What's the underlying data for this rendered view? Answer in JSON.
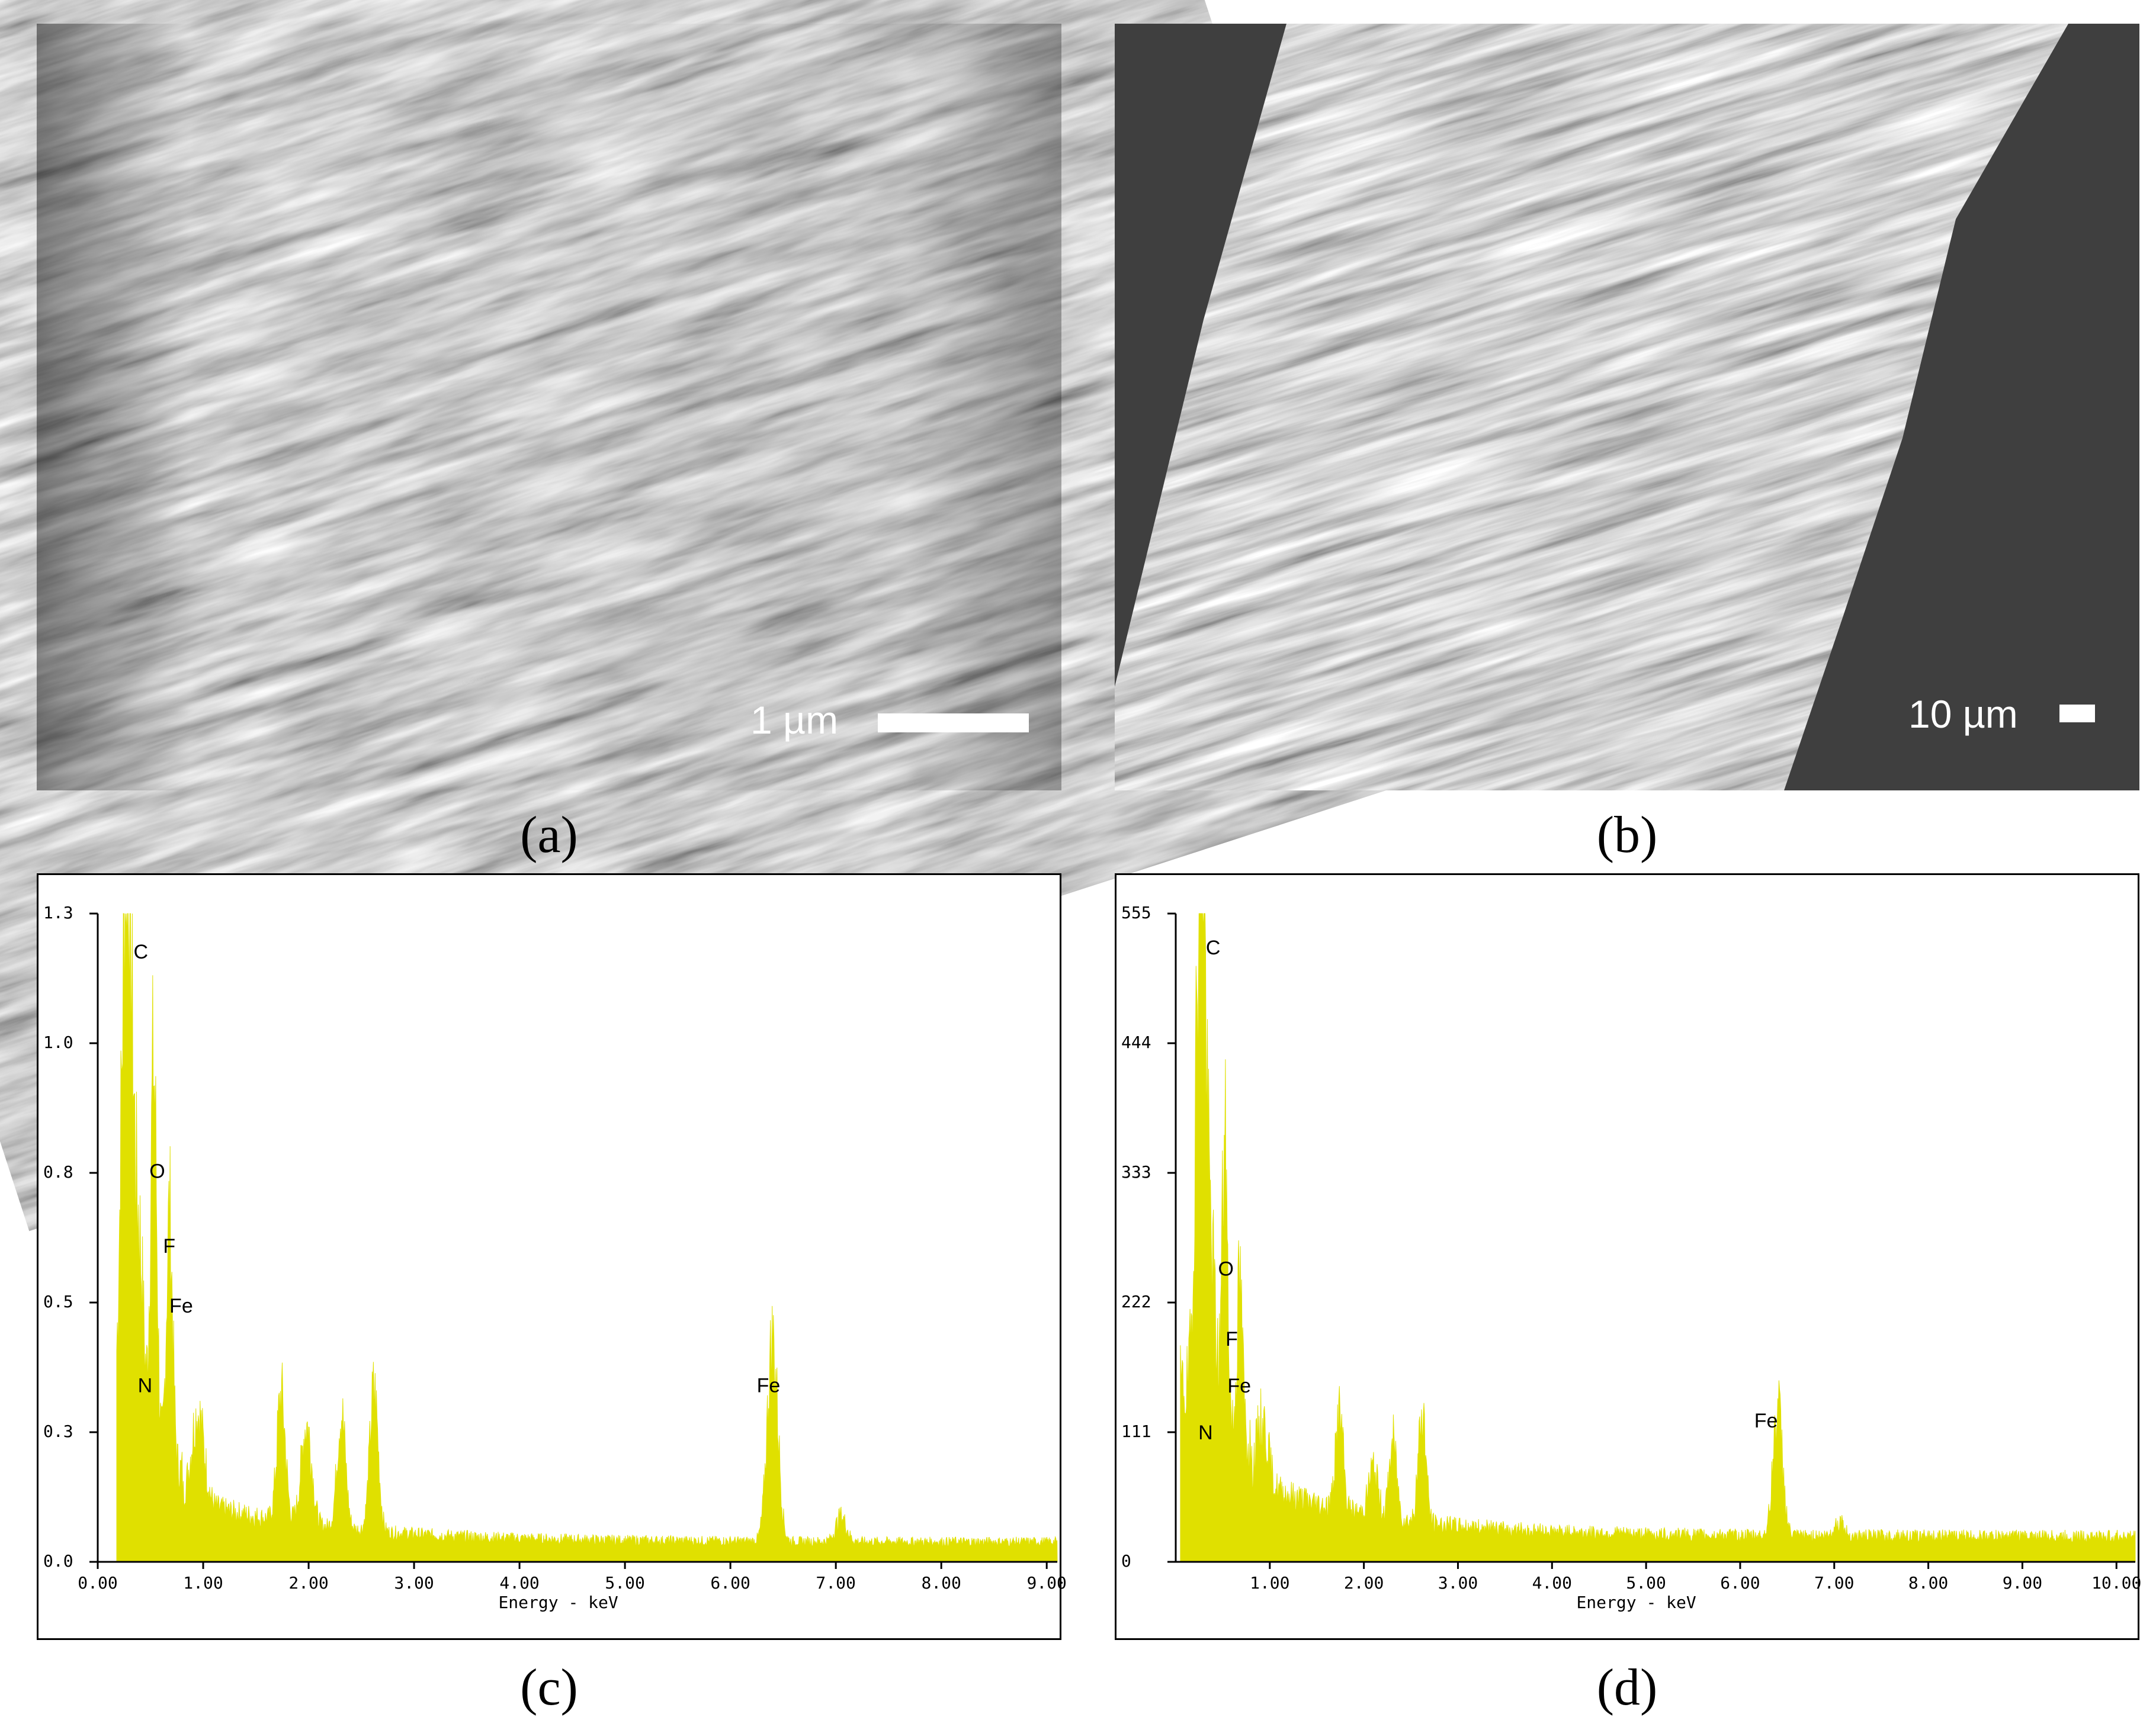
{
  "panels": {
    "a": {
      "caption": "(a)",
      "scale_bar_label": "1 µm"
    },
    "b": {
      "caption": "(b)",
      "scale_bar_label": "10 µm"
    },
    "c": {
      "caption": "(c)",
      "chart_data": {
        "type": "area",
        "xlabel": "Energy - keV",
        "x_ticks": [
          "0.00",
          "1.00",
          "2.00",
          "3.00",
          "4.00",
          "5.00",
          "6.00",
          "7.00",
          "8.00",
          "9.00"
        ],
        "y_ticks": [
          "0.0",
          "0.3",
          "0.5",
          "0.8",
          "1.0",
          "1.3"
        ],
        "xlim": [
          0,
          9.1
        ],
        "ylim": [
          0,
          1.3
        ],
        "color": "#e0e000",
        "baseline": 0.04,
        "peaks": [
          {
            "x": 0.28,
            "y": 1.27,
            "w": 0.05
          },
          {
            "x": 0.4,
            "y": 0.36,
            "w": 0.04
          },
          {
            "x": 0.53,
            "y": 0.78,
            "w": 0.03
          },
          {
            "x": 0.68,
            "y": 0.5,
            "w": 0.03
          },
          {
            "x": 0.95,
            "y": 0.18,
            "w": 0.06
          },
          {
            "x": 1.74,
            "y": 0.25,
            "w": 0.04
          },
          {
            "x": 1.98,
            "y": 0.2,
            "w": 0.05
          },
          {
            "x": 2.31,
            "y": 0.23,
            "w": 0.04
          },
          {
            "x": 2.62,
            "y": 0.28,
            "w": 0.04
          },
          {
            "x": 6.4,
            "y": 0.4,
            "w": 0.05
          },
          {
            "x": 7.05,
            "y": 0.05,
            "w": 0.05
          }
        ],
        "annotations": [
          {
            "text": "C",
            "x": 0.34,
            "y": 1.21
          },
          {
            "text": "O",
            "x": 0.49,
            "y": 0.77
          },
          {
            "text": "F",
            "x": 0.62,
            "y": 0.62
          },
          {
            "text": "Fe",
            "x": 0.68,
            "y": 0.5
          },
          {
            "text": "N",
            "x": 0.38,
            "y": 0.34
          },
          {
            "text": "Fe",
            "x": 6.25,
            "y": 0.34
          }
        ]
      }
    },
    "d": {
      "caption": "(d)",
      "chart_data": {
        "type": "area",
        "xlabel": "Energy - keV",
        "x_ticks": [
          "1.00",
          "2.00",
          "3.00",
          "4.00",
          "5.00",
          "6.00",
          "7.00",
          "8.00",
          "9.00",
          "10.00"
        ],
        "y_ticks": [
          "0",
          "111",
          "222",
          "333",
          "444",
          "555"
        ],
        "xlim": [
          0,
          10.2
        ],
        "ylim": [
          0,
          555
        ],
        "color": "#e0e000",
        "baseline": 22,
        "peaks": [
          {
            "x": 0.27,
            "y": 530,
            "w": 0.05
          },
          {
            "x": 0.39,
            "y": 110,
            "w": 0.04
          },
          {
            "x": 0.52,
            "y": 240,
            "w": 0.03
          },
          {
            "x": 0.68,
            "y": 130,
            "w": 0.03
          },
          {
            "x": 0.92,
            "y": 55,
            "w": 0.06
          },
          {
            "x": 1.74,
            "y": 80,
            "w": 0.04
          },
          {
            "x": 2.1,
            "y": 40,
            "w": 0.05
          },
          {
            "x": 2.31,
            "y": 65,
            "w": 0.04
          },
          {
            "x": 2.62,
            "y": 95,
            "w": 0.04
          },
          {
            "x": 6.4,
            "y": 110,
            "w": 0.05
          },
          {
            "x": 7.05,
            "y": 12,
            "w": 0.05
          }
        ],
        "annotations": [
          {
            "text": "C",
            "x": 0.32,
            "y": 520
          },
          {
            "text": "O",
            "x": 0.45,
            "y": 245
          },
          {
            "text": "F",
            "x": 0.53,
            "y": 185
          },
          {
            "text": "Fe",
            "x": 0.55,
            "y": 145
          },
          {
            "text": "N",
            "x": 0.24,
            "y": 105
          },
          {
            "text": "Fe",
            "x": 6.15,
            "y": 115
          }
        ]
      }
    }
  }
}
